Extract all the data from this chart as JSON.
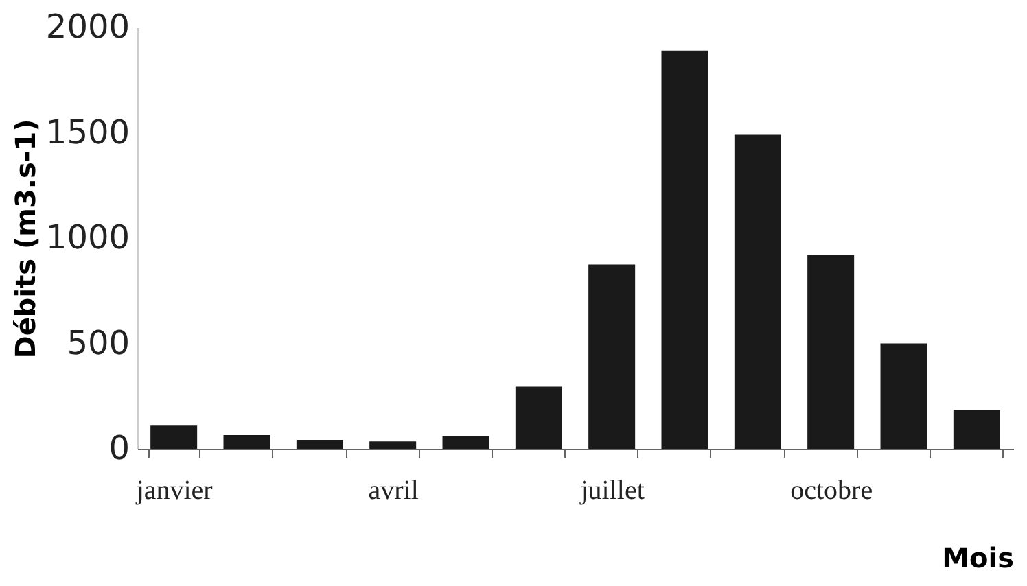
{
  "chart_data": {
    "type": "bar",
    "xlabel": "Mois",
    "ylabel": "Débits (m3.s-1)",
    "categories": [
      "janvier",
      null,
      null,
      "avril",
      null,
      null,
      "juillet",
      null,
      null,
      "octobre",
      null,
      null
    ],
    "values": [
      110,
      65,
      42,
      35,
      60,
      295,
      875,
      1890,
      1490,
      920,
      500,
      185
    ],
    "color": "#1a1a1a",
    "ylim": [
      0,
      2000
    ],
    "yticks": [
      0,
      500,
      1000,
      1500,
      2000
    ],
    "grid": false
  }
}
